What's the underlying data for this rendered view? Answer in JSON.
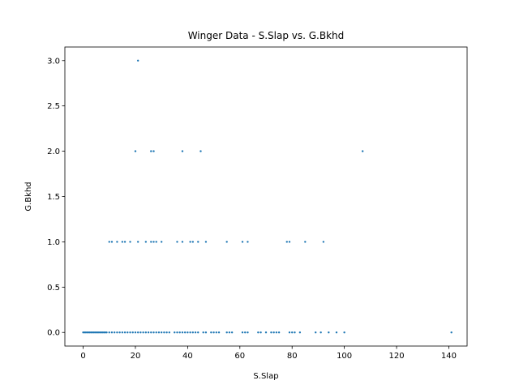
{
  "chart_data": {
    "type": "scatter",
    "title": "Winger Data - S.Slap vs. G.Bkhd",
    "xlabel": "S.Slap",
    "ylabel": "G.Bkhd",
    "xlim": [
      -7,
      147
    ],
    "ylim": [
      -0.15,
      3.15
    ],
    "xticks": [
      0,
      20,
      40,
      60,
      80,
      100,
      120,
      140
    ],
    "xtick_labels": [
      "0",
      "20",
      "40",
      "60",
      "80",
      "100",
      "120",
      "140"
    ],
    "yticks": [
      0.0,
      0.5,
      1.0,
      1.5,
      2.0,
      2.5,
      3.0
    ],
    "ytick_labels": [
      "0.0",
      "0.5",
      "1.0",
      "1.5",
      "2.0",
      "2.5",
      "3.0"
    ],
    "grid": false,
    "marker_color": "#1f77b4",
    "series": [
      {
        "points": [
          [
            21,
            3
          ],
          [
            20,
            2
          ],
          [
            26,
            2
          ],
          [
            27,
            2
          ],
          [
            38,
            2
          ],
          [
            45,
            2
          ],
          [
            107,
            2
          ],
          [
            10,
            1
          ],
          [
            11,
            1
          ],
          [
            13,
            1
          ],
          [
            15,
            1
          ],
          [
            16,
            1
          ],
          [
            18,
            1
          ],
          [
            21,
            1
          ],
          [
            24,
            1
          ],
          [
            26,
            1
          ],
          [
            27,
            1
          ],
          [
            28,
            1
          ],
          [
            30,
            1
          ],
          [
            36,
            1
          ],
          [
            38,
            1
          ],
          [
            41,
            1
          ],
          [
            42,
            1
          ],
          [
            44,
            1
          ],
          [
            47,
            1
          ],
          [
            55,
            1
          ],
          [
            61,
            1
          ],
          [
            63,
            1
          ],
          [
            78,
            1
          ],
          [
            79,
            1
          ],
          [
            85,
            1
          ],
          [
            92,
            1
          ],
          [
            0,
            0
          ],
          [
            0.5,
            0
          ],
          [
            1,
            0
          ],
          [
            1.5,
            0
          ],
          [
            2,
            0
          ],
          [
            2.5,
            0
          ],
          [
            3,
            0
          ],
          [
            3.5,
            0
          ],
          [
            4,
            0
          ],
          [
            4.5,
            0
          ],
          [
            5,
            0
          ],
          [
            5.5,
            0
          ],
          [
            6,
            0
          ],
          [
            6.5,
            0
          ],
          [
            7,
            0
          ],
          [
            7.5,
            0
          ],
          [
            8,
            0
          ],
          [
            8.5,
            0
          ],
          [
            9,
            0
          ],
          [
            10,
            0
          ],
          [
            11,
            0
          ],
          [
            12,
            0
          ],
          [
            13,
            0
          ],
          [
            14,
            0
          ],
          [
            15,
            0
          ],
          [
            16,
            0
          ],
          [
            17,
            0
          ],
          [
            18,
            0
          ],
          [
            19,
            0
          ],
          [
            20,
            0
          ],
          [
            21,
            0
          ],
          [
            22,
            0
          ],
          [
            23,
            0
          ],
          [
            24,
            0
          ],
          [
            25,
            0
          ],
          [
            26,
            0
          ],
          [
            27,
            0
          ],
          [
            28,
            0
          ],
          [
            29,
            0
          ],
          [
            30,
            0
          ],
          [
            31,
            0
          ],
          [
            32,
            0
          ],
          [
            33,
            0
          ],
          [
            35,
            0
          ],
          [
            36,
            0
          ],
          [
            37,
            0
          ],
          [
            38,
            0
          ],
          [
            39,
            0
          ],
          [
            40,
            0
          ],
          [
            41,
            0
          ],
          [
            42,
            0
          ],
          [
            43,
            0
          ],
          [
            44,
            0
          ],
          [
            46,
            0
          ],
          [
            47,
            0
          ],
          [
            49,
            0
          ],
          [
            50,
            0
          ],
          [
            51,
            0
          ],
          [
            52,
            0
          ],
          [
            55,
            0
          ],
          [
            56,
            0
          ],
          [
            57,
            0
          ],
          [
            61,
            0
          ],
          [
            62,
            0
          ],
          [
            63,
            0
          ],
          [
            67,
            0
          ],
          [
            68,
            0
          ],
          [
            70,
            0
          ],
          [
            72,
            0
          ],
          [
            73,
            0
          ],
          [
            74,
            0
          ],
          [
            75,
            0
          ],
          [
            79,
            0
          ],
          [
            80,
            0
          ],
          [
            81,
            0
          ],
          [
            83,
            0
          ],
          [
            89,
            0
          ],
          [
            91,
            0
          ],
          [
            94,
            0
          ],
          [
            97,
            0
          ],
          [
            100,
            0
          ],
          [
            141,
            0
          ]
        ]
      }
    ]
  }
}
